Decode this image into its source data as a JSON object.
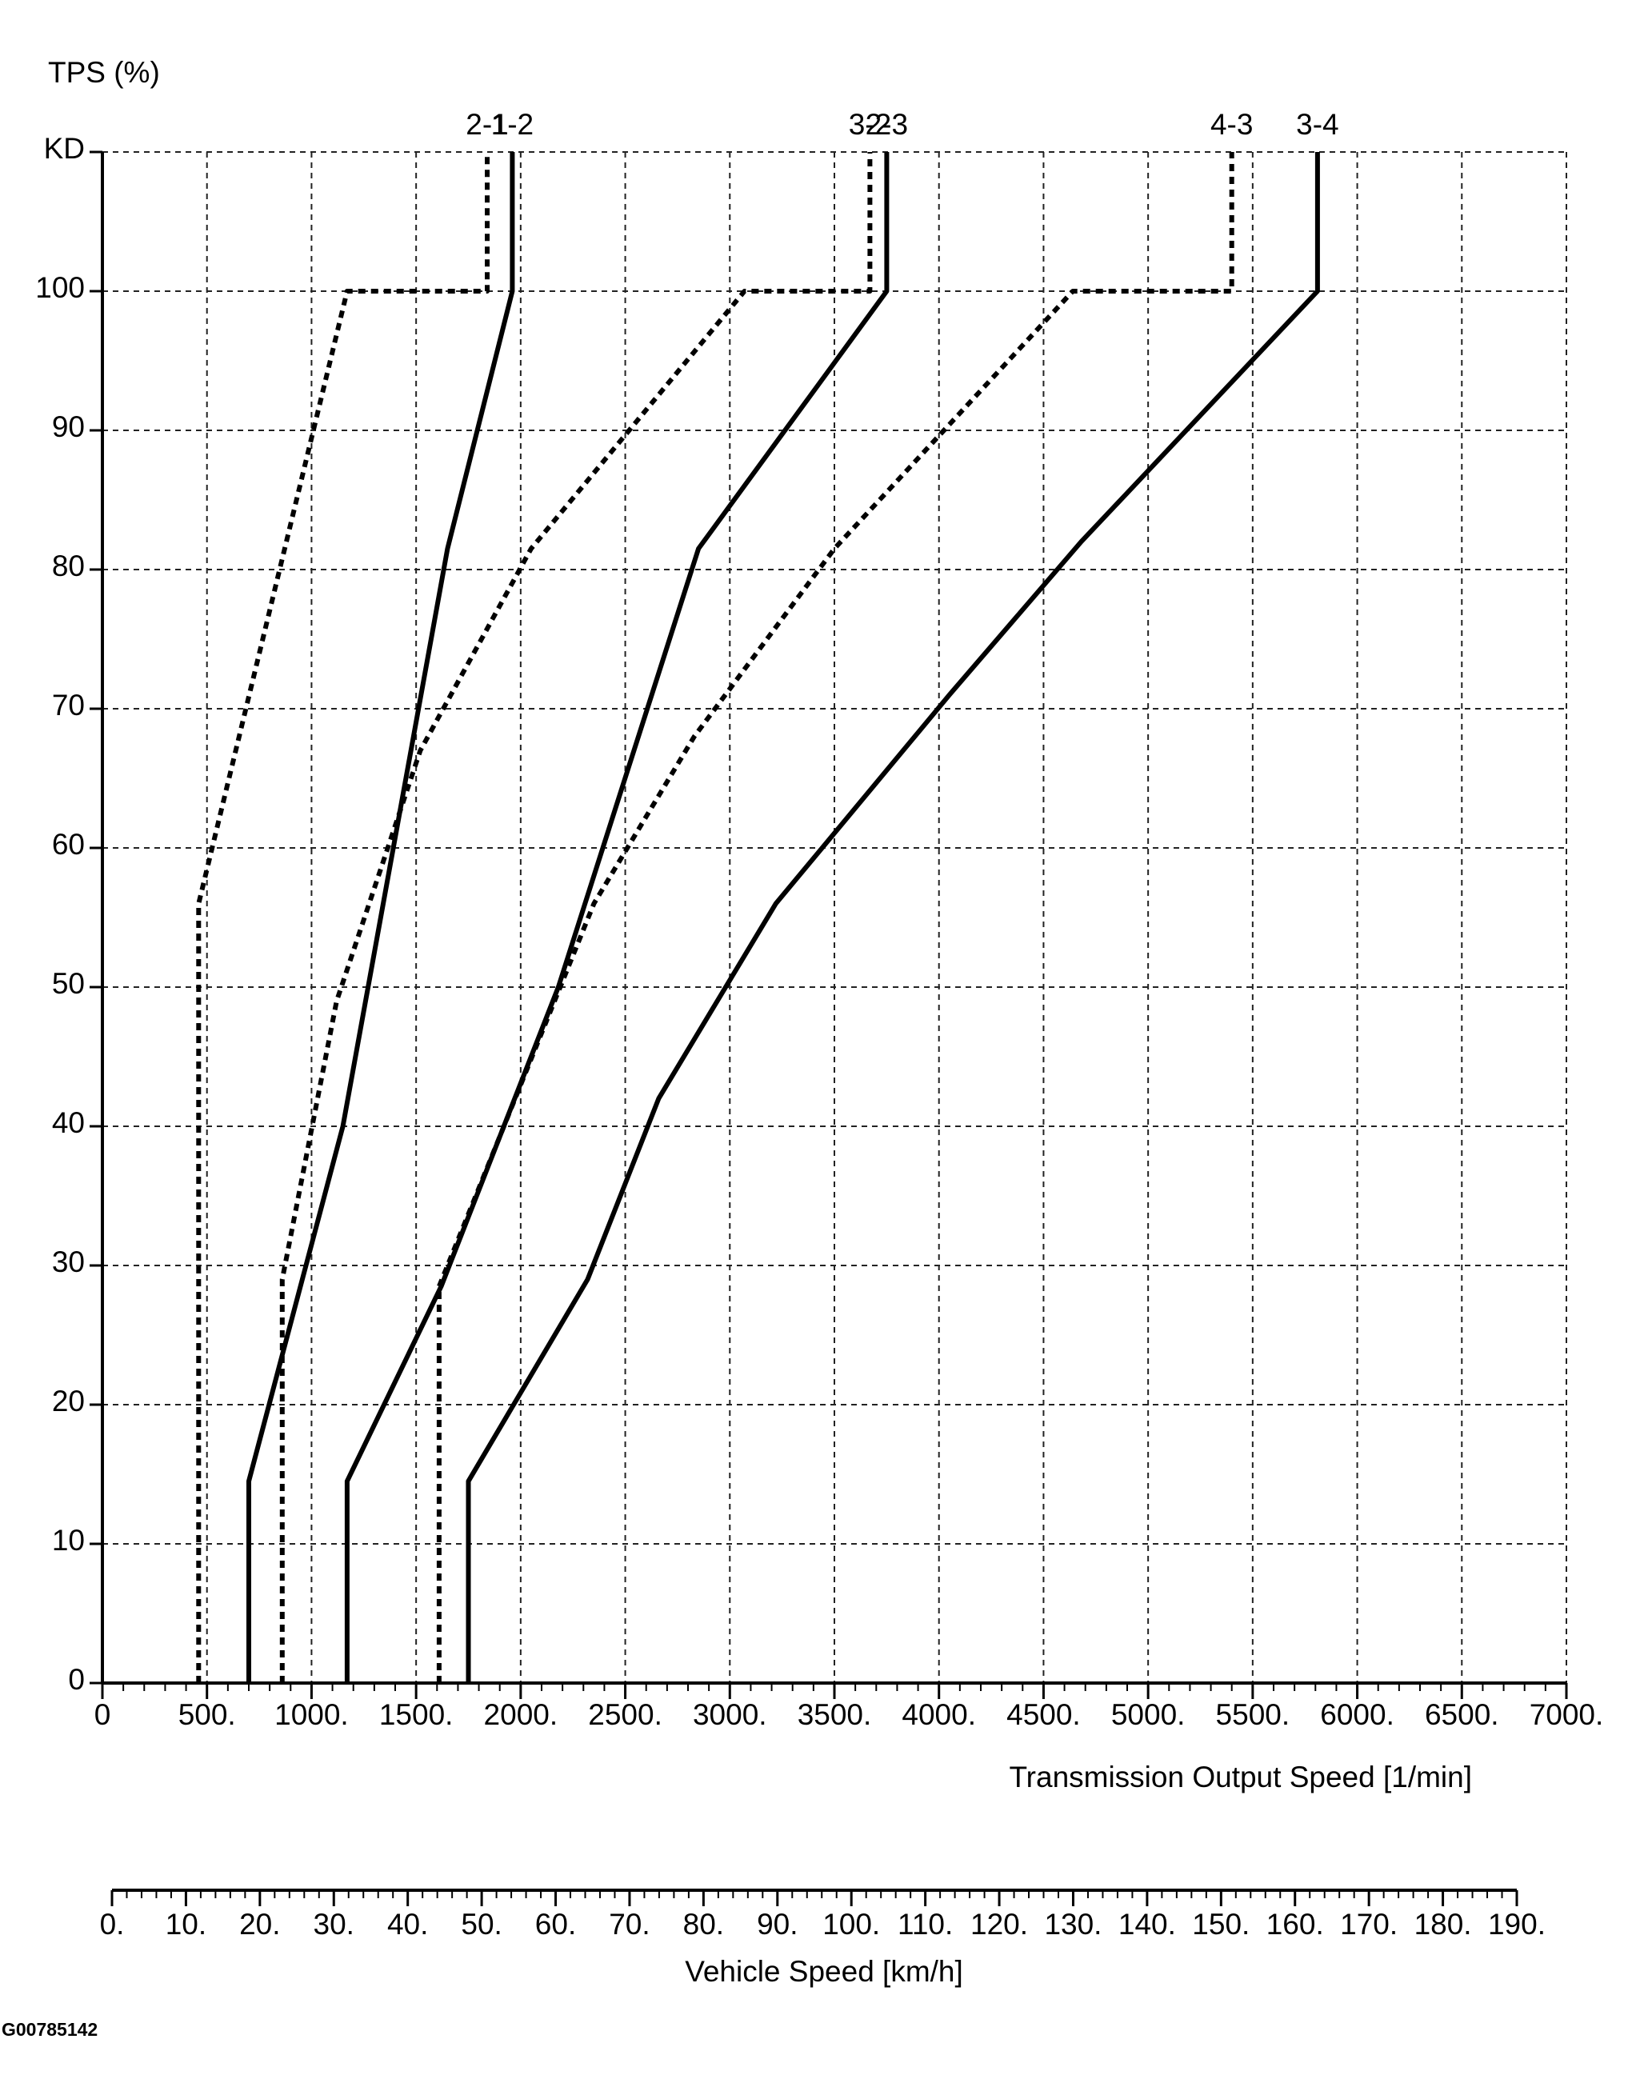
{
  "chart_data": {
    "type": "line",
    "ylabel": "TPS (%)",
    "xlabel": "Transmission Output Speed [1/min]",
    "x2label": "Vehicle Speed [km/h]",
    "figure_id": "G00785142",
    "xlim": [
      0,
      7000
    ],
    "ylim": [
      0,
      110
    ],
    "x_ticks": [
      0,
      500,
      1000,
      1500,
      2000,
      2500,
      3000,
      3500,
      4000,
      4500,
      5000,
      5500,
      6000,
      6500,
      7000
    ],
    "x_tick_labels": [
      "0",
      "500.",
      "1000.",
      "1500.",
      "2000.",
      "2500.",
      "3000.",
      "3500.",
      "4000.",
      "4500.",
      "5000.",
      "5500.",
      "6000.",
      "6500.",
      "7000."
    ],
    "y_ticks": [
      0,
      10,
      20,
      30,
      40,
      50,
      60,
      70,
      80,
      90,
      100,
      110
    ],
    "y_tick_labels": [
      "0",
      "10",
      "20",
      "30",
      "40",
      "50",
      "60",
      "70",
      "80",
      "90",
      "100",
      "KD"
    ],
    "x2_ticks": [
      0,
      10,
      20,
      30,
      40,
      50,
      60,
      70,
      80,
      90,
      100,
      110,
      120,
      130,
      140,
      150,
      160,
      170,
      180,
      190
    ],
    "x2_tick_labels": [
      "0.",
      "10.",
      "20.",
      "30.",
      "40.",
      "50.",
      "60.",
      "70.",
      "80.",
      "90.",
      "100.",
      "110.",
      "120.",
      "130.",
      "140.",
      "150.",
      "160.",
      "170.",
      "180.",
      "190."
    ],
    "x2_lim": [
      0,
      190
    ],
    "grid": true,
    "series": [
      {
        "name": "2-1",
        "style": "dotted",
        "x": [
          460,
          460,
          1170,
          1840,
          1840
        ],
        "y": [
          0,
          56,
          100,
          100,
          110
        ]
      },
      {
        "name": "1-2",
        "style": "solid",
        "x": [
          700,
          700,
          1150,
          1650,
          1960,
          1960
        ],
        "y": [
          0,
          14.5,
          40,
          81.5,
          100,
          110
        ]
      },
      {
        "name": "3-2",
        "style": "dotted",
        "x": [
          860,
          860,
          1120,
          1520,
          2050,
          3070,
          3670,
          3670
        ],
        "y": [
          0,
          29,
          49,
          67,
          81.5,
          100,
          100,
          110
        ]
      },
      {
        "name": "2-3",
        "style": "solid",
        "x": [
          1170,
          1170,
          1620,
          2180,
          2850,
          3750,
          3750
        ],
        "y": [
          0,
          14.5,
          28.5,
          50,
          81.5,
          100,
          110
        ]
      },
      {
        "name": "4-3",
        "style": "dotted",
        "x": [
          1610,
          1610,
          1920,
          2350,
          2830,
          3500,
          4640,
          5400,
          5400
        ],
        "y": [
          0,
          28.5,
          40,
          56,
          68,
          81.5,
          100,
          100,
          110
        ]
      },
      {
        "name": "3-4",
        "style": "solid",
        "x": [
          1750,
          1750,
          2320,
          2660,
          3220,
          4050,
          4680,
          5810,
          5810
        ],
        "y": [
          0,
          14.5,
          29,
          42,
          56,
          71,
          82,
          100,
          110
        ]
      }
    ]
  }
}
